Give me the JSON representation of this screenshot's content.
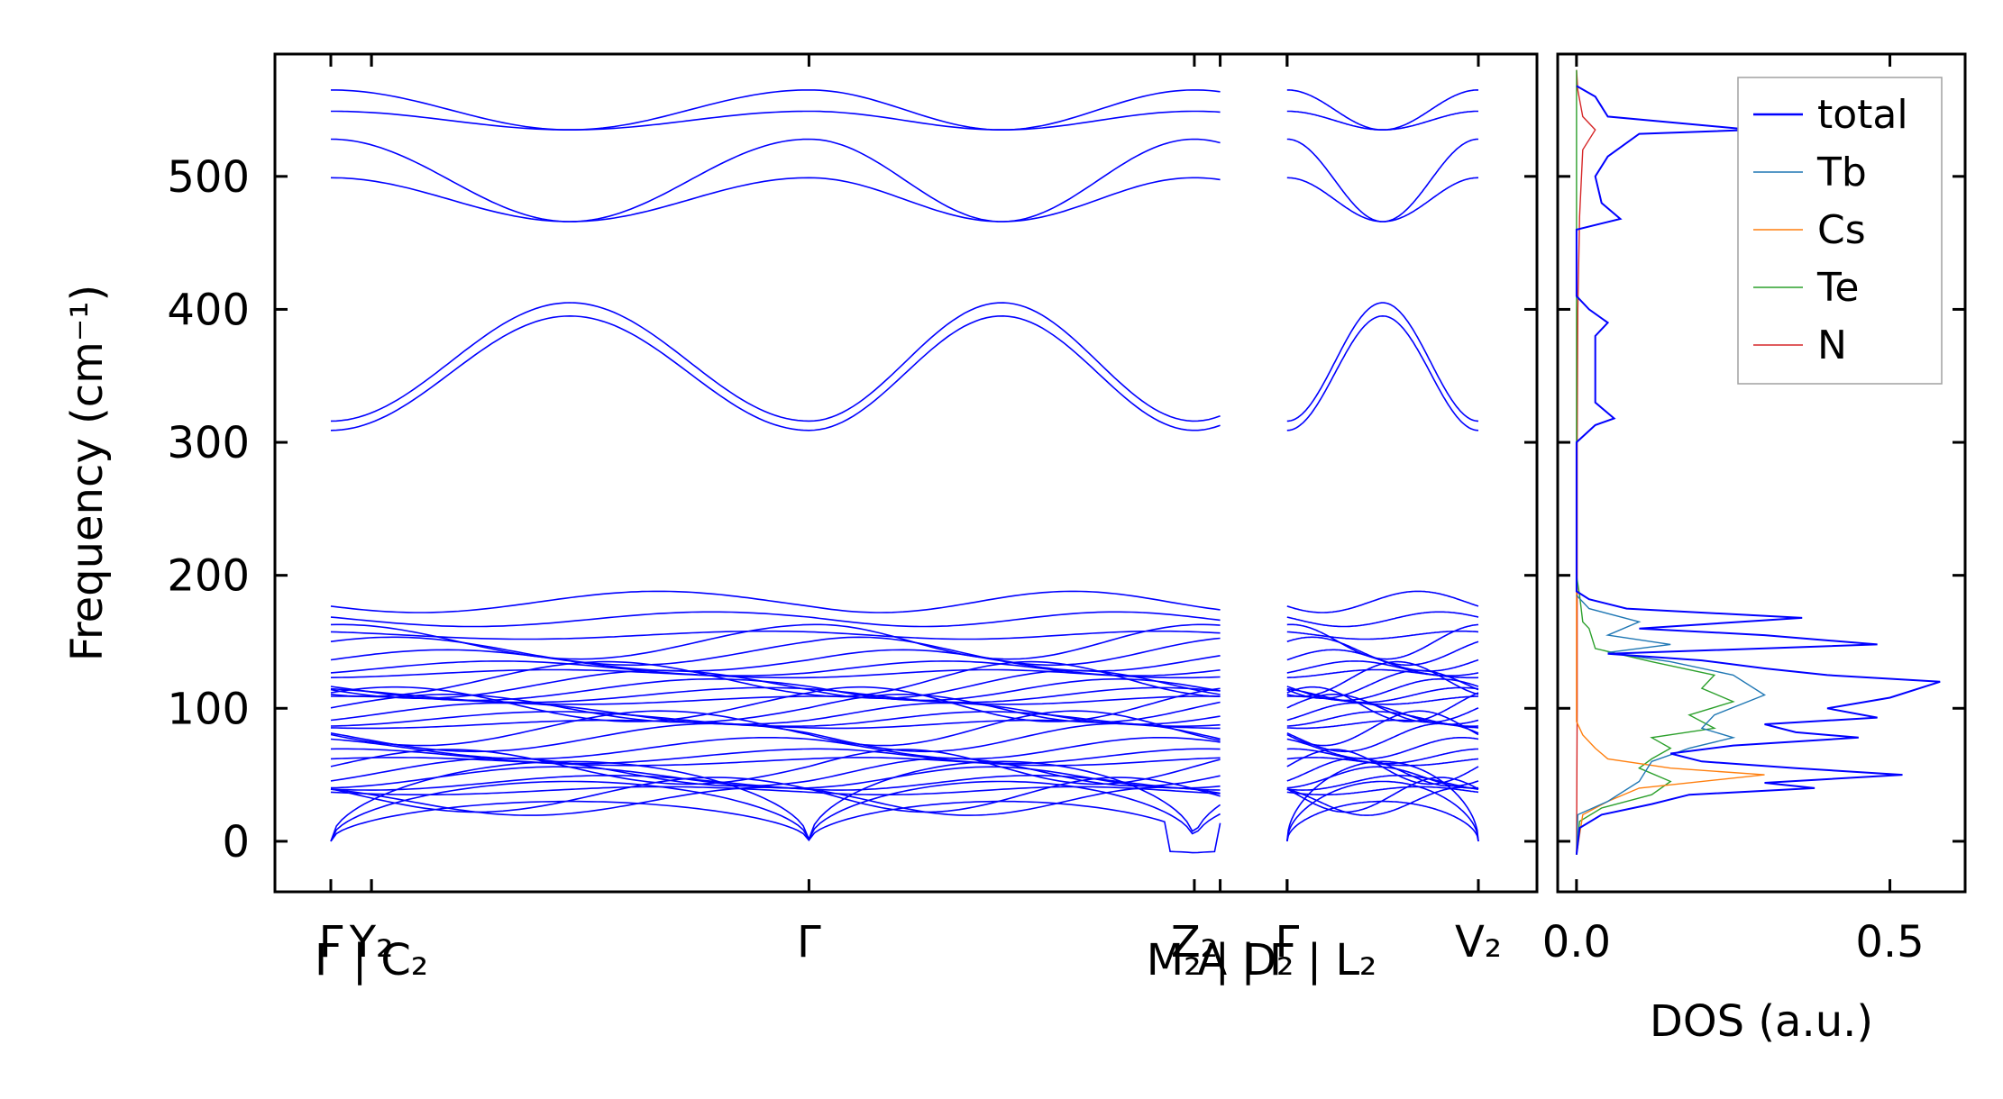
{
  "chart_data": [
    {
      "type": "line",
      "ylabel": "Frequency (cm⁻¹)",
      "ylim": [
        -38,
        592
      ],
      "yticks": [
        0,
        100,
        200,
        300,
        400,
        500
      ],
      "path_points": [
        {
          "label": "Γ",
          "x": 0.0
        },
        {
          "label": "Y₂",
          "x": 0.085
        },
        {
          "label": "Γ",
          "x": 1.0
        },
        {
          "label": "Z₂",
          "x": 1.806
        },
        {
          "label": "Γ",
          "x": 2.0
        },
        {
          "label": "V₂",
          "x": 2.4
        }
      ],
      "path_breaks": [
        {
          "label": "Γ | C₂",
          "x": 0.085
        },
        {
          "label": "M₂ | D₂",
          "x": 1.86
        },
        {
          "label": "A | Γ | L₂",
          "x": 2.0
        }
      ],
      "band_segments": [
        {
          "name": "Γ–Y₂–Γ–M₂–A",
          "x_start": 0.0,
          "x_end": 1.86
        },
        {
          "name": "L₂–Γ–V₂",
          "x_start": 2.0,
          "x_end": 2.4
        }
      ],
      "bands": {
        "color": "#0000ff",
        "high_optical_group_1_at_gamma": [
          499,
          528,
          549,
          565
        ],
        "high_optical_group_1_crossings": [
          466,
          535
        ],
        "high_optical_group_2_at_gamma": [
          309,
          316
        ],
        "high_optical_group_2_maxima": [
          395,
          405
        ],
        "low_group_at_gamma": [
          0,
          0,
          0,
          30,
          35,
          38,
          44,
          48,
          52,
          56,
          60,
          64,
          70,
          78,
          85,
          88,
          92,
          96,
          100,
          103,
          106,
          110,
          114,
          118,
          122,
          126,
          130,
          136,
          143,
          150,
          155,
          167,
          180
        ],
        "imaginary_minimum": -9
      }
    },
    {
      "type": "line",
      "xlabel": "DOS (a.u.)",
      "xticks": [
        0.0,
        0.5
      ],
      "xlim": [
        -0.03,
        0.62
      ],
      "ylim": [
        -38,
        592
      ],
      "legend_position": "upper right",
      "series": [
        {
          "name": "total",
          "color": "#0000ff",
          "points": [
            [
              0.0,
              -10
            ],
            [
              0.005,
              10
            ],
            [
              0.04,
              20
            ],
            [
              0.12,
              28
            ],
            [
              0.18,
              35
            ],
            [
              0.38,
              40
            ],
            [
              0.3,
              44
            ],
            [
              0.52,
              50
            ],
            [
              0.35,
              55
            ],
            [
              0.2,
              60
            ],
            [
              0.15,
              66
            ],
            [
              0.25,
              72
            ],
            [
              0.45,
              78
            ],
            [
              0.35,
              82
            ],
            [
              0.3,
              88
            ],
            [
              0.48,
              93
            ],
            [
              0.4,
              100
            ],
            [
              0.5,
              108
            ],
            [
              0.58,
              120
            ],
            [
              0.4,
              125
            ],
            [
              0.3,
              130
            ],
            [
              0.2,
              136
            ],
            [
              0.05,
              141
            ],
            [
              0.48,
              148
            ],
            [
              0.3,
              155
            ],
            [
              0.1,
              160
            ],
            [
              0.36,
              168
            ],
            [
              0.08,
              175
            ],
            [
              0.02,
              182
            ],
            [
              0.0,
              188
            ],
            [
              0.0,
              300
            ],
            [
              0.03,
              313
            ],
            [
              0.06,
              318
            ],
            [
              0.03,
              330
            ],
            [
              0.03,
              380
            ],
            [
              0.05,
              390
            ],
            [
              0.02,
              400
            ],
            [
              0.0,
              410
            ],
            [
              0.0,
              460
            ],
            [
              0.07,
              468
            ],
            [
              0.04,
              480
            ],
            [
              0.03,
              500
            ],
            [
              0.05,
              515
            ],
            [
              0.1,
              532
            ],
            [
              0.28,
              535
            ],
            [
              0.05,
              545
            ],
            [
              0.03,
              560
            ],
            [
              0.0,
              568
            ]
          ]
        },
        {
          "name": "Tb",
          "color": "#1f77b4",
          "points": [
            [
              0.0,
              -10
            ],
            [
              0.002,
              20
            ],
            [
              0.05,
              30
            ],
            [
              0.1,
              45
            ],
            [
              0.12,
              60
            ],
            [
              0.18,
              70
            ],
            [
              0.25,
              78
            ],
            [
              0.2,
              85
            ],
            [
              0.22,
              95
            ],
            [
              0.3,
              110
            ],
            [
              0.25,
              125
            ],
            [
              0.15,
              135
            ],
            [
              0.05,
              142
            ],
            [
              0.15,
              148
            ],
            [
              0.05,
              155
            ],
            [
              0.1,
              165
            ],
            [
              0.02,
              175
            ],
            [
              0.0,
              185
            ]
          ]
        },
        {
          "name": "Cs",
          "color": "#ff7f0e",
          "points": [
            [
              0.0,
              -10
            ],
            [
              0.01,
              20
            ],
            [
              0.05,
              30
            ],
            [
              0.1,
              40
            ],
            [
              0.3,
              50
            ],
            [
              0.15,
              55
            ],
            [
              0.05,
              62
            ],
            [
              0.03,
              70
            ],
            [
              0.01,
              80
            ],
            [
              0.0,
              90
            ],
            [
              0.0,
              200
            ]
          ]
        },
        {
          "name": "Te",
          "color": "#2ca02c",
          "points": [
            [
              0.0,
              -10
            ],
            [
              0.005,
              15
            ],
            [
              0.04,
              25
            ],
            [
              0.12,
              35
            ],
            [
              0.15,
              45
            ],
            [
              0.1,
              55
            ],
            [
              0.12,
              62
            ],
            [
              0.15,
              70
            ],
            [
              0.12,
              78
            ],
            [
              0.22,
              85
            ],
            [
              0.18,
              95
            ],
            [
              0.25,
              105
            ],
            [
              0.2,
              115
            ],
            [
              0.22,
              125
            ],
            [
              0.12,
              135
            ],
            [
              0.03,
              145
            ],
            [
              0.02,
              160
            ],
            [
              0.01,
              165
            ],
            [
              0.005,
              185
            ],
            [
              0.0,
              200
            ],
            [
              0.0,
              580
            ]
          ]
        },
        {
          "name": "N",
          "color": "#d62728",
          "points": [
            [
              0.0,
              -10
            ],
            [
              0.001,
              100
            ],
            [
              0.001,
              300
            ],
            [
              0.002,
              400
            ],
            [
              0.005,
              470
            ],
            [
              0.01,
              520
            ],
            [
              0.03,
              535
            ],
            [
              0.01,
              545
            ],
            [
              0.002,
              565
            ],
            [
              0.0,
              580
            ]
          ]
        }
      ]
    }
  ]
}
